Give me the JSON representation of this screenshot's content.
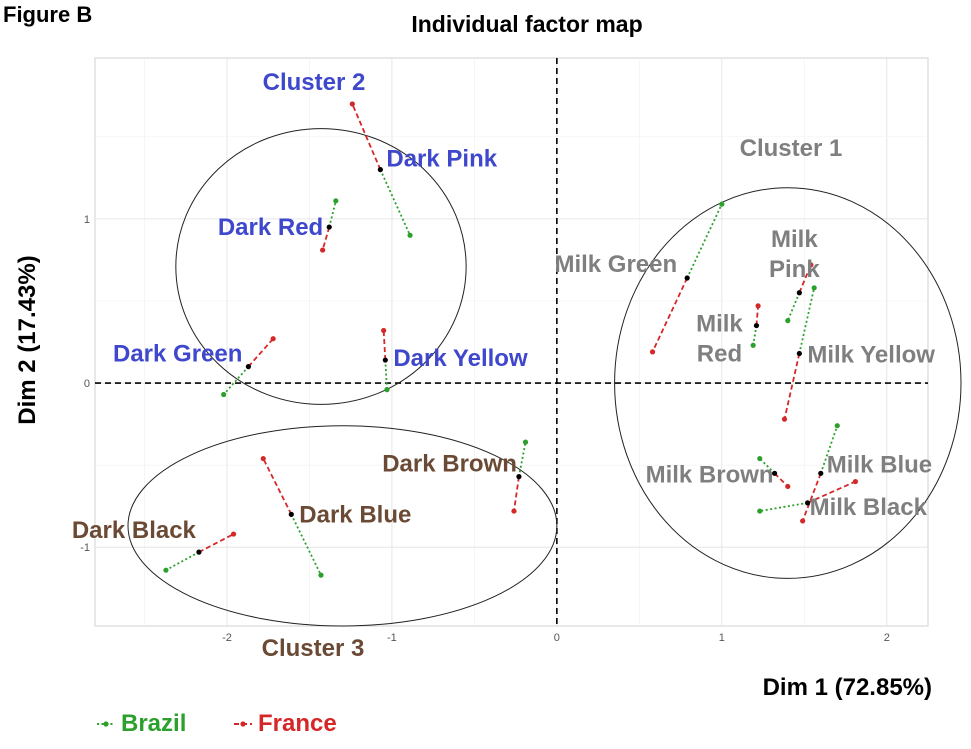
{
  "figure_label": "Figure B",
  "chart_data": {
    "type": "scatter",
    "title": "Individual factor map",
    "xlabel": "Dim 1 (72.85%)",
    "ylabel": "Dim 2 (17.43%)",
    "xlim": [
      -2.8,
      2.25
    ],
    "ylim": [
      -1.48,
      1.98
    ],
    "x_ticks": [
      -2,
      -1,
      0,
      1,
      2
    ],
    "y_ticks": [
      -1,
      0,
      1
    ],
    "grid": true,
    "reference_lines": {
      "x": 0,
      "y": 0
    },
    "legend": {
      "placement": "bottom-left",
      "entries": [
        {
          "name": "Brazil",
          "color": "#2ca02c"
        },
        {
          "name": "France",
          "color": "#d62728"
        }
      ]
    },
    "colors": {
      "brazil": "#2ca02c",
      "france": "#d62728",
      "mean": "#000000",
      "dark_label": "#3f48cc",
      "milk_label": "#7f7f7f",
      "cluster3_label": "#6b4a35"
    },
    "points": [
      {
        "label": "Dark Pink",
        "group": "dark",
        "mean": [
          -1.07,
          1.3
        ],
        "brazil": [
          -0.89,
          0.9
        ],
        "france": [
          -1.24,
          1.7
        ]
      },
      {
        "label": "Dark Red",
        "group": "dark",
        "mean": [
          -1.38,
          0.95
        ],
        "brazil": [
          -1.34,
          1.11
        ],
        "france": [
          -1.42,
          0.81
        ]
      },
      {
        "label": "Dark Green",
        "group": "dark",
        "mean": [
          -1.87,
          0.1
        ],
        "brazil": [
          -2.02,
          -0.07
        ],
        "france": [
          -1.72,
          0.27
        ]
      },
      {
        "label": "Dark Yellow",
        "group": "dark",
        "mean": [
          -1.04,
          0.14
        ],
        "brazil": [
          -1.03,
          -0.04
        ],
        "france": [
          -1.05,
          0.32
        ]
      },
      {
        "label": "Dark Brown",
        "group": "brown",
        "mean": [
          -0.23,
          -0.57
        ],
        "brazil": [
          -0.19,
          -0.36
        ],
        "france": [
          -0.26,
          -0.78
        ]
      },
      {
        "label": "Dark Blue",
        "group": "brown",
        "mean": [
          -1.61,
          -0.8
        ],
        "brazil": [
          -1.43,
          -1.17
        ],
        "france": [
          -1.78,
          -0.46
        ]
      },
      {
        "label": "Dark Black",
        "group": "brown",
        "mean": [
          -2.17,
          -1.03
        ],
        "brazil": [
          -2.37,
          -1.14
        ],
        "france": [
          -1.96,
          -0.92
        ]
      },
      {
        "label": "Milk Green",
        "group": "milk",
        "mean": [
          0.79,
          0.64
        ],
        "brazil": [
          1.0,
          1.09
        ],
        "france": [
          0.58,
          0.19
        ]
      },
      {
        "label": "Milk Pink",
        "group": "milk",
        "mean": [
          1.47,
          0.55
        ],
        "brazil": [
          1.4,
          0.38
        ],
        "france": [
          1.54,
          0.72
        ]
      },
      {
        "label": "Milk Red",
        "group": "milk",
        "mean": [
          1.21,
          0.35
        ],
        "brazil": [
          1.19,
          0.23
        ],
        "france": [
          1.22,
          0.47
        ]
      },
      {
        "label": "Milk Yellow",
        "group": "milk",
        "mean": [
          1.47,
          0.18
        ],
        "brazil": [
          1.56,
          0.58
        ],
        "france": [
          1.38,
          -0.22
        ]
      },
      {
        "label": "Milk Brown",
        "group": "milk",
        "mean": [
          1.32,
          -0.55
        ],
        "brazil": [
          1.23,
          -0.46
        ],
        "france": [
          1.4,
          -0.63
        ]
      },
      {
        "label": "Milk Blue",
        "group": "milk",
        "mean": [
          1.6,
          -0.55
        ],
        "brazil": [
          1.7,
          -0.26
        ],
        "france": [
          1.49,
          -0.84
        ]
      },
      {
        "label": "Milk Black",
        "group": "milk",
        "mean": [
          1.52,
          -0.73
        ],
        "brazil": [
          1.23,
          -0.78
        ],
        "france": [
          1.81,
          -0.6
        ]
      }
    ],
    "clusters": [
      {
        "label": "Cluster 1",
        "group": "milk",
        "cx": 1.4,
        "cy": 0.0,
        "rx": 1.05,
        "ry": 1.19
      },
      {
        "label": "Cluster 2",
        "group": "dark",
        "cx": -1.43,
        "cy": 0.71,
        "rx": 0.88,
        "ry": 0.84
      },
      {
        "label": "Cluster 3",
        "group": "brown",
        "cx": -1.3,
        "cy": -0.87,
        "rx": 1.3,
        "ry": 0.61
      }
    ]
  }
}
